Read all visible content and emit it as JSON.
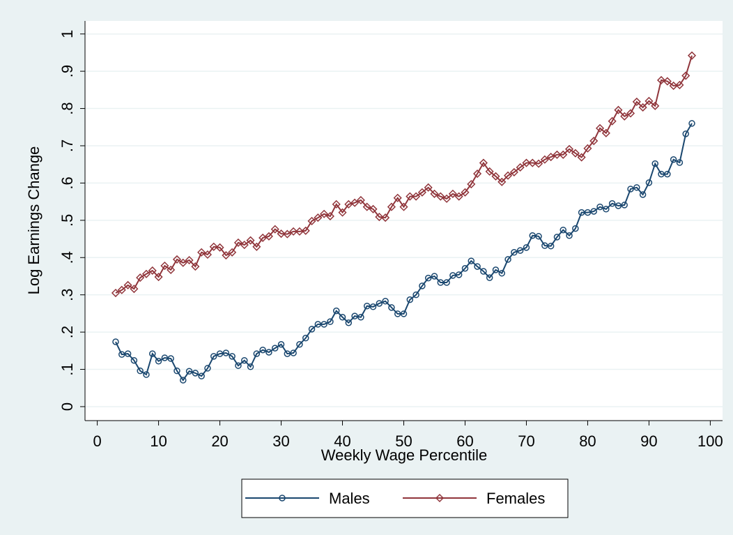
{
  "chart_data": {
    "type": "line",
    "x_label": "Weekly Wage Percentile",
    "y_label": "Log Earnings Change",
    "xlim": [
      -2,
      102
    ],
    "ylim": [
      -0.0375,
      1.035
    ],
    "xticks": [
      0,
      10,
      20,
      30,
      40,
      50,
      60,
      70,
      80,
      90,
      100
    ],
    "yticks": [
      0,
      {
        "value": 0.1,
        "label": ".1"
      },
      {
        "value": 0.2,
        "label": ".2"
      },
      {
        "value": 0.3,
        "label": ".3"
      },
      {
        "value": 0.4,
        "label": ".4"
      },
      {
        "value": 0.5,
        "label": ".5"
      },
      {
        "value": 0.6,
        "label": ".6"
      },
      {
        "value": 0.7,
        "label": ".7"
      },
      {
        "value": 0.8,
        "label": ".8"
      },
      {
        "value": 0.9,
        "label": ".9"
      },
      1
    ],
    "grid": true,
    "legend": "bottom",
    "x": [
      3,
      4,
      5,
      6,
      7,
      8,
      9,
      10,
      11,
      12,
      13,
      14,
      15,
      16,
      17,
      18,
      19,
      20,
      21,
      22,
      23,
      24,
      25,
      26,
      27,
      28,
      29,
      30,
      31,
      32,
      33,
      34,
      35,
      36,
      37,
      38,
      39,
      40,
      41,
      42,
      43,
      44,
      45,
      46,
      47,
      48,
      49,
      50,
      51,
      52,
      53,
      54,
      55,
      56,
      57,
      58,
      59,
      60,
      61,
      62,
      63,
      64,
      65,
      66,
      67,
      68,
      69,
      70,
      71,
      72,
      73,
      74,
      75,
      76,
      77,
      78,
      79,
      80,
      81,
      82,
      83,
      84,
      85,
      86,
      87,
      88,
      89,
      90,
      91,
      92,
      93,
      94,
      95,
      96,
      97
    ],
    "series": [
      {
        "name": "Males",
        "color": "#1a476f",
        "marker": "circle",
        "values": [
          0.174,
          0.14,
          0.142,
          0.124,
          0.096,
          0.086,
          0.142,
          0.122,
          0.131,
          0.129,
          0.096,
          0.071,
          0.095,
          0.09,
          0.082,
          0.103,
          0.135,
          0.142,
          0.144,
          0.135,
          0.11,
          0.124,
          0.107,
          0.142,
          0.152,
          0.146,
          0.157,
          0.167,
          0.142,
          0.144,
          0.167,
          0.184,
          0.208,
          0.221,
          0.221,
          0.228,
          0.257,
          0.24,
          0.225,
          0.243,
          0.24,
          0.27,
          0.268,
          0.277,
          0.283,
          0.266,
          0.249,
          0.249,
          0.287,
          0.3,
          0.324,
          0.345,
          0.35,
          0.333,
          0.333,
          0.352,
          0.354,
          0.371,
          0.391,
          0.376,
          0.363,
          0.346,
          0.367,
          0.358,
          0.395,
          0.414,
          0.419,
          0.427,
          0.459,
          0.457,
          0.432,
          0.431,
          0.455,
          0.474,
          0.459,
          0.478,
          0.521,
          0.521,
          0.524,
          0.536,
          0.53,
          0.545,
          0.539,
          0.541,
          0.584,
          0.588,
          0.569,
          0.601,
          0.652,
          0.624,
          0.624,
          0.663,
          0.655,
          0.732,
          0.76
        ]
      },
      {
        "name": "Females",
        "color": "#90353b",
        "marker": "diamond",
        "values": [
          0.305,
          0.313,
          0.326,
          0.316,
          0.346,
          0.356,
          0.365,
          0.348,
          0.378,
          0.367,
          0.395,
          0.386,
          0.393,
          0.376,
          0.414,
          0.408,
          0.429,
          0.427,
          0.406,
          0.414,
          0.44,
          0.434,
          0.446,
          0.429,
          0.453,
          0.457,
          0.476,
          0.464,
          0.463,
          0.47,
          0.47,
          0.472,
          0.498,
          0.507,
          0.517,
          0.511,
          0.543,
          0.521,
          0.543,
          0.547,
          0.554,
          0.536,
          0.53,
          0.509,
          0.507,
          0.536,
          0.56,
          0.536,
          0.564,
          0.564,
          0.575,
          0.588,
          0.571,
          0.564,
          0.558,
          0.571,
          0.564,
          0.575,
          0.597,
          0.625,
          0.654,
          0.631,
          0.618,
          0.603,
          0.62,
          0.629,
          0.642,
          0.654,
          0.654,
          0.652,
          0.663,
          0.67,
          0.676,
          0.676,
          0.691,
          0.68,
          0.669,
          0.693,
          0.713,
          0.747,
          0.734,
          0.766,
          0.796,
          0.779,
          0.787,
          0.818,
          0.803,
          0.82,
          0.807,
          0.876,
          0.873,
          0.861,
          0.863,
          0.888,
          0.942
        ]
      }
    ]
  }
}
